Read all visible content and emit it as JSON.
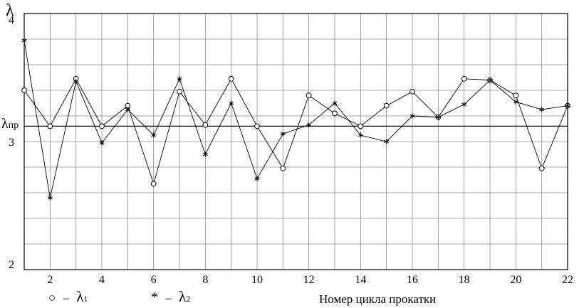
{
  "chart_data": {
    "type": "line",
    "ylabel": "λ",
    "xlabel": "Номер цикла прокатки",
    "xlim": [
      1,
      22
    ],
    "ylim": [
      2,
      4
    ],
    "xticks": [
      2,
      4,
      6,
      8,
      10,
      12,
      14,
      16,
      18,
      20,
      22
    ],
    "yticks": [
      2,
      3,
      4
    ],
    "grid": true,
    "reference_line": {
      "label": "λпр",
      "label_main": "λ",
      "label_sub": "пр",
      "value": 3.12
    },
    "x": [
      1,
      2,
      3,
      4,
      5,
      6,
      7,
      8,
      9,
      10,
      11,
      12,
      13,
      14,
      15,
      16,
      17,
      18,
      19,
      20,
      21,
      22
    ],
    "series": [
      {
        "name": "λ1",
        "marker": "circle",
        "values": [
          3.4,
          3.12,
          3.49,
          3.12,
          3.28,
          2.67,
          3.39,
          3.13,
          3.49,
          3.12,
          2.79,
          3.36,
          3.22,
          3.12,
          3.28,
          3.39,
          3.19,
          3.49,
          3.48,
          3.36,
          2.79,
          3.28
        ]
      },
      {
        "name": "λ2",
        "marker": "asterisk",
        "values": [
          3.79,
          2.56,
          3.47,
          2.99,
          3.25,
          3.05,
          3.49,
          2.9,
          3.3,
          2.71,
          3.06,
          3.13,
          3.3,
          3.05,
          3.0,
          3.2,
          3.19,
          3.29,
          3.48,
          3.31,
          3.25,
          3.28
        ]
      }
    ],
    "legend": {
      "placement": "bottom-left",
      "items": [
        {
          "symbol": "○",
          "dash": "–",
          "main": "λ",
          "sub": "1"
        },
        {
          "symbol": "*",
          "dash": "–",
          "main": "λ",
          "sub": "2"
        }
      ]
    }
  }
}
